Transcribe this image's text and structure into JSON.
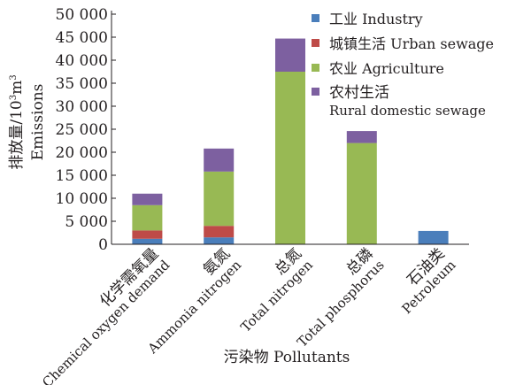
{
  "chart_data": {
    "type": "bar",
    "stacked": true,
    "ylabel": [
      "排放量/10",
      "3",
      "m",
      "3"
    ],
    "ylabel_en": "Emissions",
    "xlabel": "污染物 Pollutants",
    "ylim": [
      0,
      50000
    ],
    "yticks": [
      0,
      5000,
      10000,
      15000,
      20000,
      25000,
      30000,
      35000,
      40000,
      45000,
      50000
    ],
    "ytick_labels": [
      "0",
      "5 000",
      "10 000",
      "15 000",
      "20 000",
      "25 000",
      "30 000",
      "35 000",
      "40 000",
      "45 000",
      "50 000"
    ],
    "categories": [
      {
        "zh": "化学需氧量",
        "en": "Chemical oxygen demand"
      },
      {
        "zh": "氨氮",
        "en": "Ammonia nitrogen"
      },
      {
        "zh": "总氮",
        "en": "Total nitrogen"
      },
      {
        "zh": "总磷",
        "en": "Total phosphorus"
      },
      {
        "zh": "石油类",
        "en": "Petroleum"
      }
    ],
    "series": [
      {
        "name": "工业 Industry",
        "color": "#4a7ebb",
        "values": [
          1200,
          1500,
          0,
          0,
          2900
        ]
      },
      {
        "name": "城镇生活 Urban sewage",
        "color": "#be4b48",
        "values": [
          1800,
          2500,
          0,
          0,
          0
        ]
      },
      {
        "name": "农业 Agriculture",
        "color": "#98b954",
        "values": [
          5500,
          11800,
          37500,
          22000,
          0
        ]
      },
      {
        "name": "农村生活 Rural domestic sewage",
        "name_lines": [
          "农村生活",
          "Rural domestic sewage"
        ],
        "color": "#7d60a0",
        "values": [
          2500,
          5000,
          7200,
          2600,
          0
        ]
      }
    ],
    "grid": false,
    "legend_position": "top-right"
  }
}
